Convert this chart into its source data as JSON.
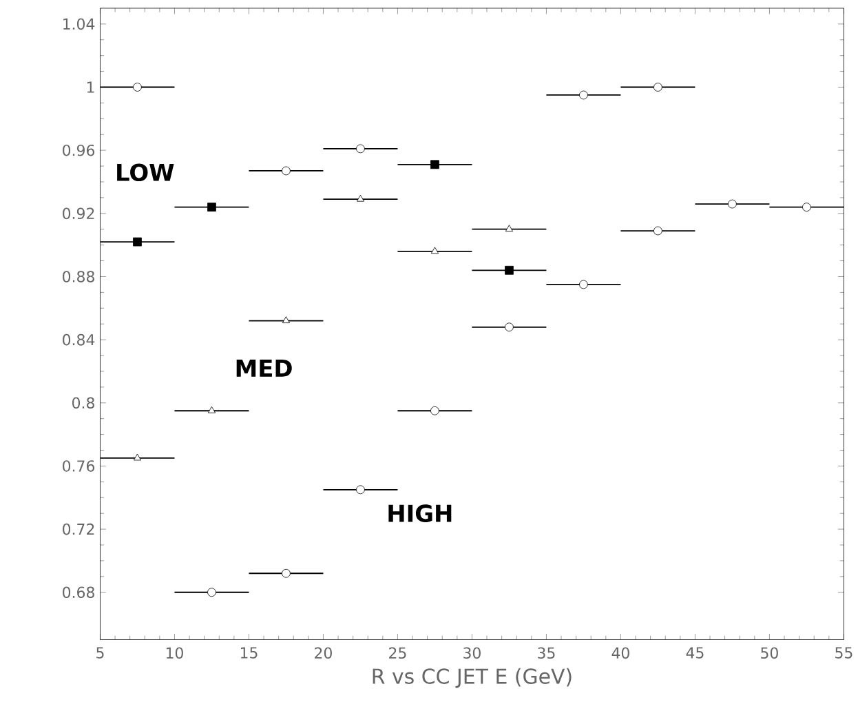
{
  "chart_data": {
    "type": "scatter",
    "xlabel": "R vs CC JET E (GeV)",
    "series": [
      {
        "color": "#000000",
        "marker": "circle",
        "x": [
          7.5,
          12.5,
          17.5,
          17.5,
          22.5,
          22.5,
          27.5,
          32.5,
          37.5,
          37.5,
          42.5,
          42.5,
          47.5,
          52.5
        ],
        "values": [
          1.0,
          0.68,
          0.692,
          0.947,
          0.745,
          0.961,
          0.795,
          0.848,
          0.875,
          0.995,
          1.0,
          0.909,
          0.926,
          0.924
        ],
        "xerrors": [
          2.5,
          2.5,
          2.5,
          2.5,
          2.5,
          2.5,
          2.5,
          2.5,
          2.5,
          2.5,
          2.5,
          2.5,
          2.5,
          2.5
        ]
      },
      {
        "color": "#000000",
        "marker": "triangle",
        "x": [
          7.5,
          12.5,
          17.5,
          22.5,
          27.5,
          32.5
        ],
        "values": [
          0.765,
          0.795,
          0.852,
          0.929,
          0.896,
          0.91
        ],
        "xerrors": [
          2.5,
          2.5,
          2.5,
          2.5,
          2.5,
          2.5
        ]
      },
      {
        "color": "#000000",
        "marker": "square",
        "x": [
          7.5,
          12.5,
          27.5,
          32.5
        ],
        "values": [
          0.902,
          0.924,
          0.951,
          0.884
        ],
        "xerrors": [
          2.5,
          2.5,
          2.5,
          2.5
        ]
      }
    ],
    "xlim": [
      5,
      55
    ],
    "xticks": [
      5,
      10,
      15,
      20,
      25,
      30,
      35,
      40,
      45,
      50,
      55
    ],
    "ylim": [
      0.65,
      1.05
    ],
    "yticks": [
      0.68,
      0.72,
      0.76,
      0.8,
      0.84,
      0.88,
      0.92,
      0.96,
      1,
      1.04
    ],
    "annotations": [
      "LOW",
      "MED",
      "HIGH"
    ],
    "grid": false
  }
}
